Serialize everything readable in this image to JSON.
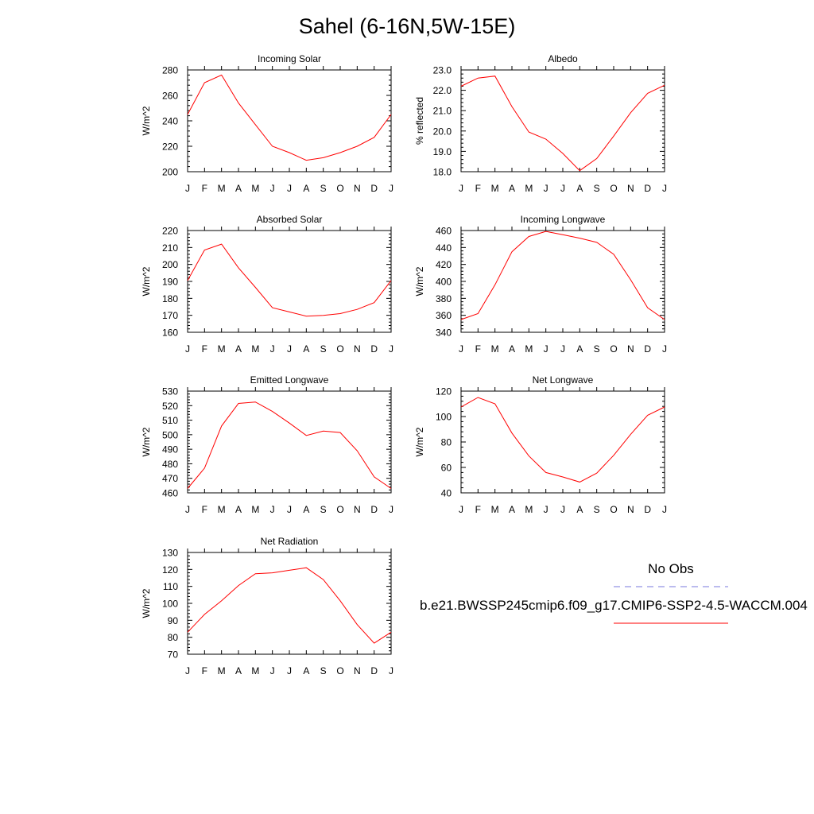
{
  "figure": {
    "title": "Sahel (6-16N,5W-15E)"
  },
  "months": [
    "J",
    "F",
    "M",
    "A",
    "M",
    "J",
    "J",
    "A",
    "S",
    "O",
    "N",
    "D",
    "J"
  ],
  "chart_data": [
    {
      "type": "line",
      "title": "Incoming Solar",
      "ylabel": "W/m^2",
      "ylim": [
        200,
        280
      ],
      "yticks": [
        200,
        220,
        240,
        260,
        280
      ],
      "ytick_labels": [
        "200",
        "220",
        "240",
        "260",
        "280"
      ],
      "x": [
        "J",
        "F",
        "M",
        "A",
        "M",
        "J",
        "J",
        "A",
        "S",
        "O",
        "N",
        "D",
        "J"
      ],
      "series": [
        {
          "values": [
            245,
            270,
            276,
            254,
            237,
            220,
            215,
            209,
            211,
            215,
            220,
            227,
            245
          ]
        }
      ]
    },
    {
      "type": "line",
      "title": "Albedo",
      "ylabel": "% reflected",
      "ylim": [
        18.0,
        23.0
      ],
      "yticks": [
        18,
        19,
        20,
        21,
        22,
        23
      ],
      "ytick_labels": [
        "18.0",
        "19.0",
        "20.0",
        "21.0",
        "22.0",
        "23.0"
      ],
      "x": [
        "J",
        "F",
        "M",
        "A",
        "M",
        "J",
        "J",
        "A",
        "S",
        "O",
        "N",
        "D",
        "J"
      ],
      "series": [
        {
          "values": [
            22.2,
            22.6,
            22.7,
            21.2,
            19.95,
            19.6,
            18.9,
            18.05,
            18.65,
            19.75,
            20.9,
            21.85,
            22.25
          ]
        }
      ]
    },
    {
      "type": "line",
      "title": "Absorbed Solar",
      "ylabel": "W/m^2",
      "ylim": [
        160,
        220
      ],
      "yticks": [
        160,
        170,
        180,
        190,
        200,
        210,
        220
      ],
      "ytick_labels": [
        "160",
        "170",
        "180",
        "190",
        "200",
        "210",
        "220"
      ],
      "x": [
        "J",
        "F",
        "M",
        "A",
        "M",
        "J",
        "J",
        "A",
        "S",
        "O",
        "N",
        "D",
        "J"
      ],
      "series": [
        {
          "values": [
            190.5,
            208.5,
            212,
            198,
            186.5,
            174.5,
            172,
            169.5,
            170,
            171,
            173.5,
            177.5,
            190.5
          ]
        }
      ]
    },
    {
      "type": "line",
      "title": "Incoming Longwave",
      "ylabel": "W/m^2",
      "ylim": [
        340,
        460
      ],
      "yticks": [
        340,
        360,
        380,
        400,
        420,
        440,
        460
      ],
      "ytick_labels": [
        "340",
        "360",
        "380",
        "400",
        "420",
        "440",
        "460"
      ],
      "x": [
        "J",
        "F",
        "M",
        "A",
        "M",
        "J",
        "J",
        "A",
        "S",
        "O",
        "N",
        "D",
        "J"
      ],
      "series": [
        {
          "values": [
            355,
            362,
            396,
            435,
            453,
            459,
            455,
            451,
            446,
            432,
            402,
            369,
            355
          ]
        }
      ]
    },
    {
      "type": "line",
      "title": "Emitted Longwave",
      "ylabel": "W/m^2",
      "ylim": [
        460,
        530
      ],
      "yticks": [
        460,
        470,
        480,
        490,
        500,
        510,
        520,
        530
      ],
      "ytick_labels": [
        "460",
        "470",
        "480",
        "490",
        "500",
        "510",
        "520",
        "530"
      ],
      "x": [
        "J",
        "F",
        "M",
        "A",
        "M",
        "J",
        "J",
        "A",
        "S",
        "O",
        "N",
        "D",
        "J"
      ],
      "series": [
        {
          "values": [
            463,
            477,
            506,
            521.5,
            522.5,
            516,
            508,
            499.5,
            502.5,
            501.5,
            489,
            471,
            463
          ]
        }
      ]
    },
    {
      "type": "line",
      "title": "Net Longwave",
      "ylabel": "W/m^2",
      "ylim": [
        40,
        120
      ],
      "yticks": [
        40,
        60,
        80,
        100,
        120
      ],
      "ytick_labels": [
        "40",
        "60",
        "80",
        "100",
        "120"
      ],
      "x": [
        "J",
        "F",
        "M",
        "A",
        "M",
        "J",
        "J",
        "A",
        "S",
        "O",
        "N",
        "D",
        "J"
      ],
      "series": [
        {
          "values": [
            107.5,
            115,
            110,
            87,
            69,
            56,
            52.5,
            48.5,
            55.5,
            69.5,
            86,
            101,
            107.5
          ]
        }
      ]
    },
    {
      "type": "line",
      "title": "Net Radiation",
      "ylabel": "W/m^2",
      "ylim": [
        70,
        130
      ],
      "yticks": [
        70,
        80,
        90,
        100,
        110,
        120,
        130
      ],
      "ytick_labels": [
        "70",
        "80",
        "90",
        "100",
        "110",
        "120",
        "130"
      ],
      "x": [
        "J",
        "F",
        "M",
        "A",
        "M",
        "J",
        "J",
        "A",
        "S",
        "O",
        "N",
        "D",
        "J"
      ],
      "series": [
        {
          "values": [
            83,
            93.5,
            101.5,
            110.5,
            117.5,
            118,
            119.5,
            121,
            114,
            101.5,
            87.5,
            76.5,
            83
          ]
        }
      ]
    }
  ],
  "legend": {
    "entries": [
      {
        "label": "No Obs",
        "color": "#7777dd",
        "dash": "dashed"
      },
      {
        "label": "b.e21.BWSSP245cmip6.f09_g17.CMIP6-SSP2-4.5-WACCM.004",
        "color": "#ff0000",
        "dash": "solid"
      }
    ]
  },
  "colors": {
    "model_line": "#ff0000",
    "obs_line": "#7777dd",
    "axes": "#000000"
  }
}
